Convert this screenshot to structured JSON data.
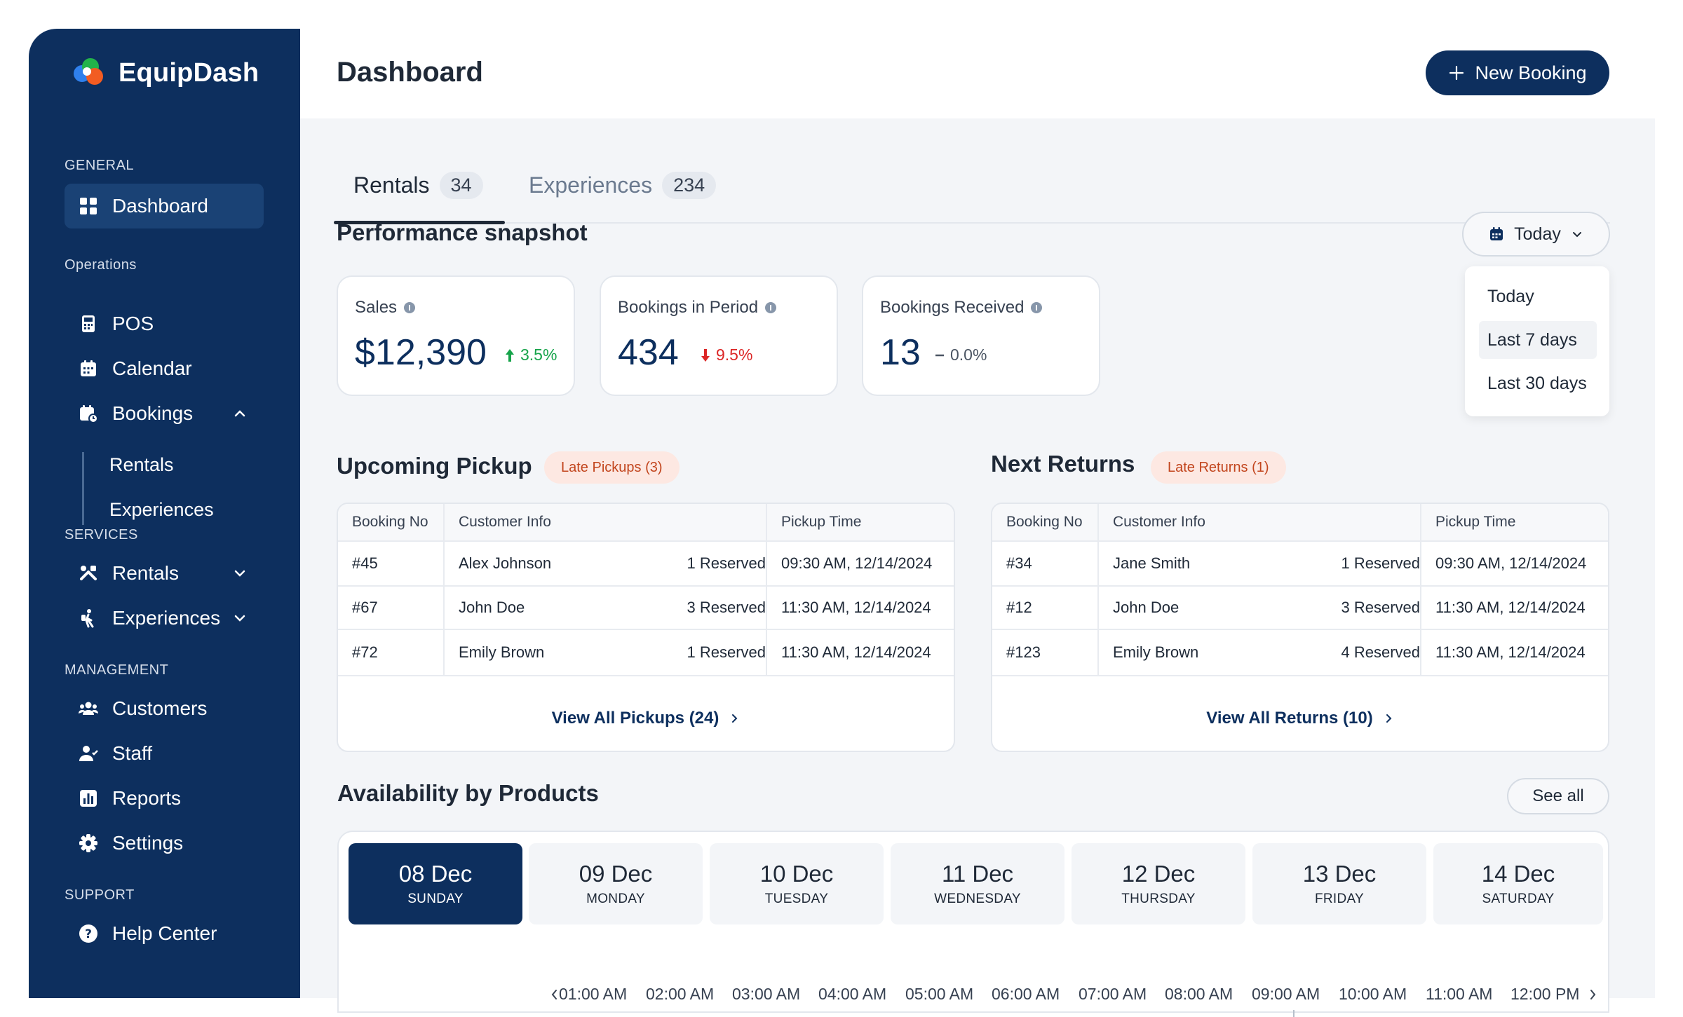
{
  "app": {
    "name": "EquipDash"
  },
  "sidebar": {
    "sections": {
      "general": "GENERAL",
      "operations": "Operations",
      "services": "SERVICES",
      "management": "MANAGEMENT",
      "support": "SUPPORT"
    },
    "items": {
      "dashboard": "Dashboard",
      "pos": "POS",
      "calendar": "Calendar",
      "bookings": "Bookings",
      "bookings_rentals": "Rentals",
      "bookings_experiences": "Experiences",
      "rentals": "Rentals",
      "experiences": "Experiences",
      "customers": "Customers",
      "staff": "Staff",
      "reports": "Reports",
      "settings": "Settings",
      "help": "Help Center"
    }
  },
  "header": {
    "title": "Dashboard",
    "new_booking": "New Booking"
  },
  "tabs": [
    {
      "label": "Rentals",
      "count": "34"
    },
    {
      "label": "Experiences",
      "count": "234"
    }
  ],
  "snapshot": {
    "title": "Performance snapshot",
    "period": "Today",
    "period_options": [
      "Today",
      "Last 7 days",
      "Last 30 days"
    ],
    "metrics": [
      {
        "label": "Sales",
        "value": "$12,390",
        "change": "3.5%",
        "trend": "up",
        "color": "#16a34a"
      },
      {
        "label": "Bookings in Period",
        "value": "434",
        "change": "9.5%",
        "trend": "down",
        "color": "#dc2626"
      },
      {
        "label": "Bookings Received",
        "value": "13",
        "change": "0.0%",
        "trend": "flat",
        "color": "#4b5563"
      }
    ]
  },
  "pickup": {
    "title": "Upcoming Pickup",
    "badge": "Late Pickups (3)",
    "columns": [
      "Booking No",
      "Customer Info",
      "Pickup Time"
    ],
    "rows": [
      {
        "no": "#45",
        "name": "Alex Johnson",
        "reserved": "1 Reserved",
        "time": "09:30 AM, 12/14/2024"
      },
      {
        "no": "#67",
        "name": "John Doe",
        "reserved": "3 Reserved",
        "time": "11:30 AM, 12/14/2024"
      },
      {
        "no": "#72",
        "name": "Emily Brown",
        "reserved": "1 Reserved",
        "time": "11:30 AM, 12/14/2024"
      }
    ],
    "view_all": "View All Pickups (24)"
  },
  "returns": {
    "title": "Next Returns",
    "badge": "Late Returns (1)",
    "columns": [
      "Booking No",
      "Customer Info",
      "Pickup Time"
    ],
    "rows": [
      {
        "no": "#34",
        "name": "Jane Smith",
        "reserved": "1 Reserved",
        "time": "09:30 AM, 12/14/2024"
      },
      {
        "no": "#12",
        "name": "John Doe",
        "reserved": "3 Reserved",
        "time": "11:30 AM, 12/14/2024"
      },
      {
        "no": "#123",
        "name": "Emily Brown",
        "reserved": "4 Reserved",
        "time": "11:30 AM, 12/14/2024"
      }
    ],
    "view_all": "View All Returns (10)"
  },
  "availability": {
    "title": "Availability by Products",
    "see_all": "See all",
    "days": [
      {
        "date": "08 Dec",
        "weekday": "SUNDAY"
      },
      {
        "date": "09 Dec",
        "weekday": "MONDAY"
      },
      {
        "date": "10 Dec",
        "weekday": "TUESDAY"
      },
      {
        "date": "11 Dec",
        "weekday": "WEDNESDAY"
      },
      {
        "date": "12 Dec",
        "weekday": "THURSDAY"
      },
      {
        "date": "13 Dec",
        "weekday": "FRIDAY"
      },
      {
        "date": "14 Dec",
        "weekday": "SATURDAY"
      }
    ],
    "hours": [
      "01:00 AM",
      "02:00 AM",
      "03:00 AM",
      "04:00 AM",
      "05:00 AM",
      "06:00 AM",
      "07:00 AM",
      "08:00 AM",
      "09:00 AM",
      "10:00 AM",
      "11:00 AM",
      "12:00 PM"
    ]
  }
}
